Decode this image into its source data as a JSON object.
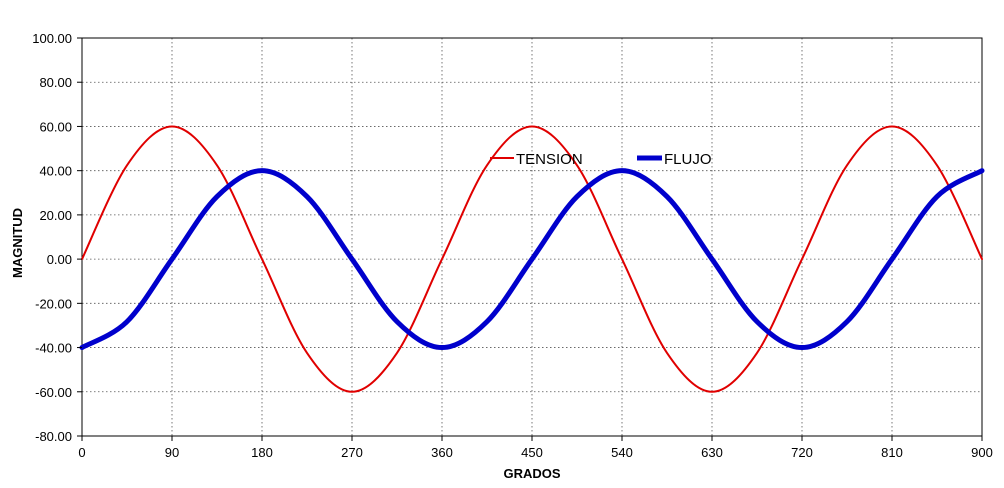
{
  "chart_data": {
    "type": "line",
    "title": "",
    "xlabel": "GRADOS",
    "ylabel": "MAGNITUD",
    "xlim": [
      0,
      900
    ],
    "ylim": [
      -80,
      100
    ],
    "x_ticks": [
      0,
      90,
      180,
      270,
      360,
      450,
      540,
      630,
      720,
      810,
      900
    ],
    "x_tick_labels": [
      "0",
      "90",
      "180",
      "270",
      "360",
      "450",
      "540",
      "630",
      "720",
      "810",
      "900"
    ],
    "y_ticks": [
      100,
      80,
      60,
      40,
      20,
      0,
      -20,
      -40,
      -60,
      -80
    ],
    "y_tick_labels": [
      "100.00",
      "80.00",
      "60.00",
      "40.00",
      "20.00",
      "0.00",
      "-20.00",
      "-40.00",
      "-60.00",
      "-80.00"
    ],
    "grid": true,
    "legend_position": "upper-center",
    "x": [
      0,
      45,
      90,
      135,
      180,
      225,
      270,
      315,
      360,
      405,
      450,
      495,
      540,
      585,
      630,
      675,
      720,
      765,
      810,
      855,
      900
    ],
    "series": [
      {
        "name": "TENSION",
        "color": "#e00000",
        "values": [
          0,
          42.43,
          60,
          42.43,
          0,
          -42.43,
          -60,
          -42.43,
          0,
          42.43,
          60,
          42.43,
          0,
          -42.43,
          -60,
          -42.43,
          0,
          42.43,
          60,
          42.43,
          0
        ]
      },
      {
        "name": "FLUJO",
        "color": "#0000cc",
        "values": [
          -40,
          -28.28,
          0,
          28.28,
          40,
          28.28,
          0,
          -28.28,
          -40,
          -28.28,
          0,
          28.28,
          40,
          28.28,
          0,
          -28.28,
          -40,
          -28.28,
          0,
          28.28,
          40
        ]
      }
    ]
  }
}
